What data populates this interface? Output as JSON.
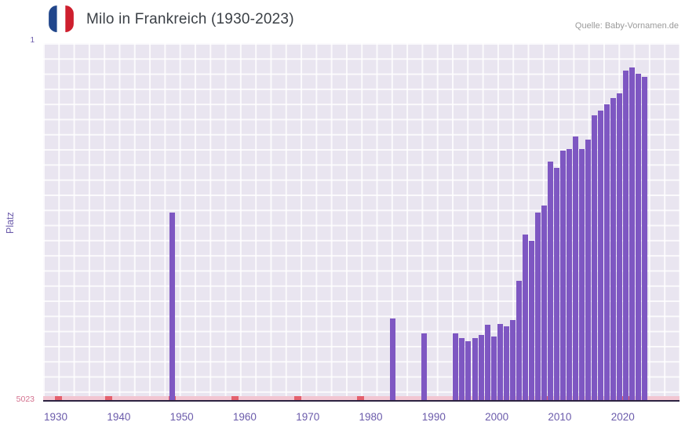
{
  "header": {
    "title": "Milo in Frankreich (1930-2023)",
    "source": "Quelle: Baby-Vornamen.de",
    "flag": {
      "name": "france-flag-icon",
      "colors": [
        "#21468b",
        "#ffffff",
        "#ce1f2e"
      ]
    }
  },
  "chart_data": {
    "type": "bar",
    "title": "Milo in Frankreich (1930-2023)",
    "xlabel": "",
    "ylabel": "Platz",
    "y_axis": {
      "top_label": "1",
      "bottom_label": "5023",
      "min": 1,
      "max": 5023,
      "inverted": true
    },
    "x_domain": [
      1928,
      2029
    ],
    "x_ticks": [
      1930,
      1940,
      1950,
      1960,
      1970,
      1980,
      1990,
      2000,
      2010,
      2020
    ],
    "grid": true,
    "legend": "none",
    "bars": [
      {
        "year": 1948,
        "rank": 2390
      },
      {
        "year": 1983,
        "rank": 3870
      },
      {
        "year": 1988,
        "rank": 4080
      },
      {
        "year": 1993,
        "rank": 4085
      },
      {
        "year": 1994,
        "rank": 4150
      },
      {
        "year": 1995,
        "rank": 4190
      },
      {
        "year": 1996,
        "rank": 4150
      },
      {
        "year": 1997,
        "rank": 4110
      },
      {
        "year": 1998,
        "rank": 3960
      },
      {
        "year": 1999,
        "rank": 4125
      },
      {
        "year": 2000,
        "rank": 3950
      },
      {
        "year": 2001,
        "rank": 3990
      },
      {
        "year": 2002,
        "rank": 3900
      },
      {
        "year": 2003,
        "rank": 3350
      },
      {
        "year": 2004,
        "rank": 2690
      },
      {
        "year": 2005,
        "rank": 2780
      },
      {
        "year": 2006,
        "rank": 2380
      },
      {
        "year": 2007,
        "rank": 2290
      },
      {
        "year": 2008,
        "rank": 1670
      },
      {
        "year": 2009,
        "rank": 1760
      },
      {
        "year": 2010,
        "rank": 1515
      },
      {
        "year": 2011,
        "rank": 1490
      },
      {
        "year": 2012,
        "rank": 1315
      },
      {
        "year": 2013,
        "rank": 1490
      },
      {
        "year": 2014,
        "rank": 1360
      },
      {
        "year": 2015,
        "rank": 1020
      },
      {
        "year": 2016,
        "rank": 955
      },
      {
        "year": 2017,
        "rank": 865
      },
      {
        "year": 2018,
        "rank": 775
      },
      {
        "year": 2019,
        "rank": 710
      },
      {
        "year": 2020,
        "rank": 390
      },
      {
        "year": 2021,
        "rank": 345
      },
      {
        "year": 2022,
        "rank": 430
      },
      {
        "year": 2023,
        "rank": 470
      }
    ],
    "no_rank_marks_years": [
      1930,
      1938,
      1948,
      1958,
      1968,
      1978,
      2008,
      2020
    ],
    "colors": {
      "bar": "#7e57c2",
      "plot_bg": "#e9e5f0",
      "grid": "#ffffff",
      "axis_line": "#2d2342",
      "strip": "#f2c6d2",
      "strip_mark": "#e4606d",
      "tick_text": "#6b5bab",
      "bottom_tick_text": "#d4708e",
      "title_text": "#3b4046",
      "source_text": "#9a9a9a"
    }
  }
}
